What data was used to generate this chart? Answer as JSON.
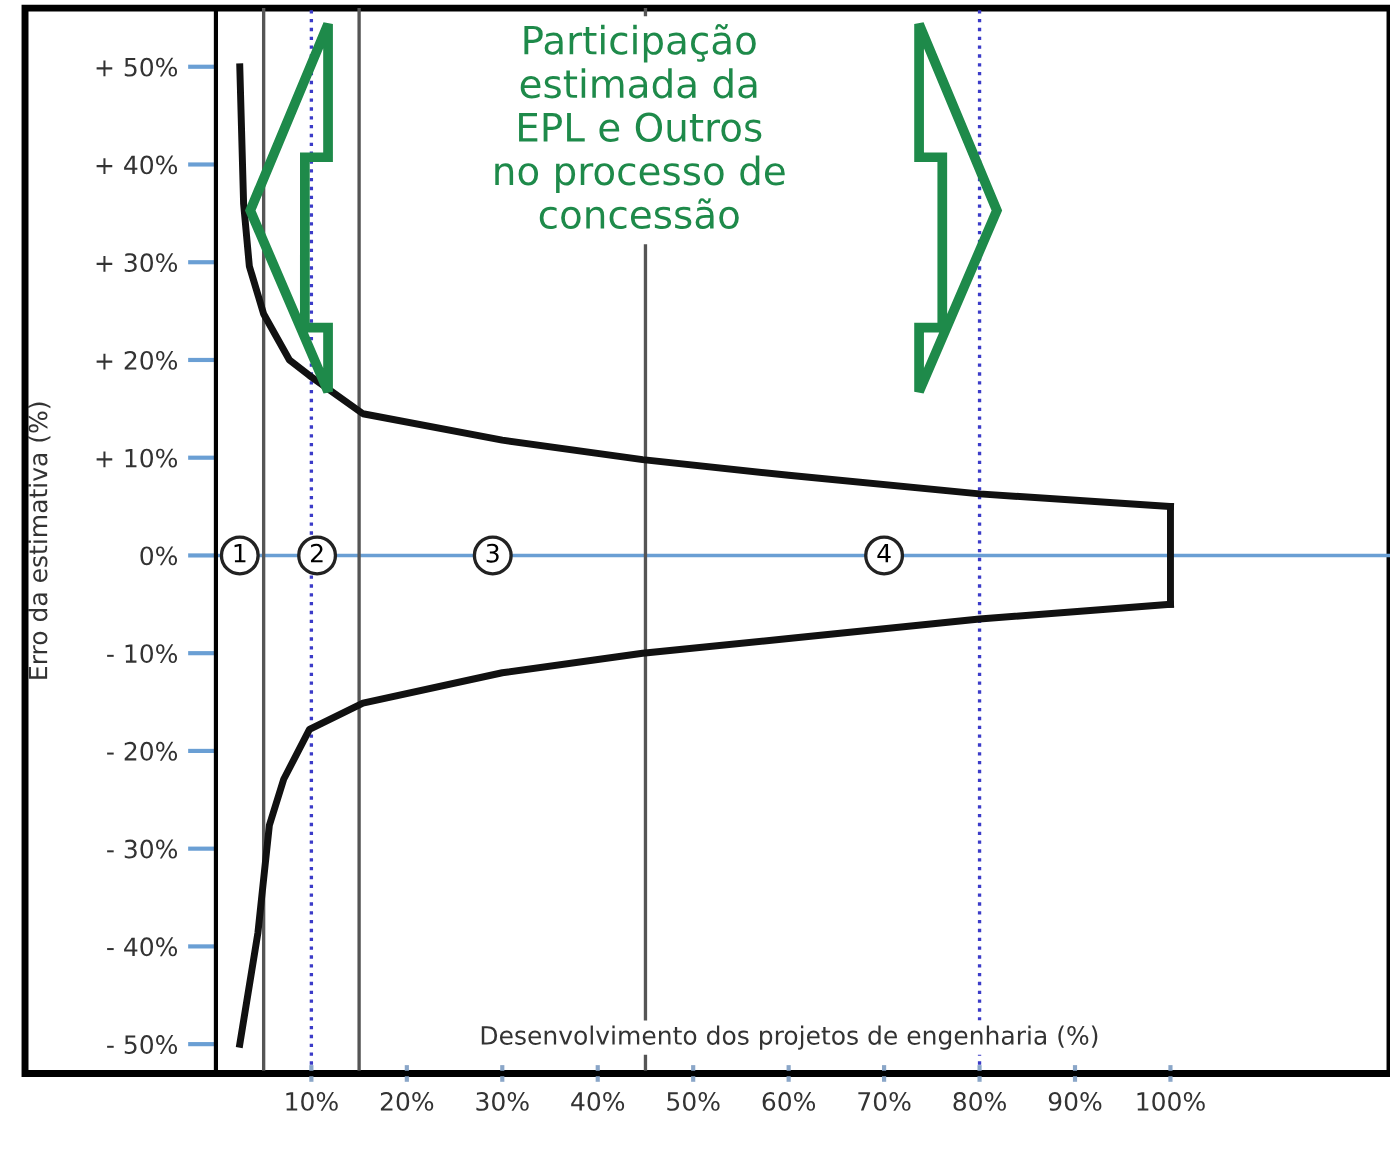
{
  "chart_data": {
    "type": "line",
    "xlabel": "Desenvolvimento dos projetos de engenharia (%)",
    "ylabel": "Erro da estimativa (%)",
    "xlim": [
      -20,
      123
    ],
    "ylim": [
      -53,
      56
    ],
    "xticks": [
      {
        "value": 10,
        "label": "10%"
      },
      {
        "value": 20,
        "label": "20%"
      },
      {
        "value": 30,
        "label": "30%"
      },
      {
        "value": 40,
        "label": "40%"
      },
      {
        "value": 50,
        "label": "50%"
      },
      {
        "value": 60,
        "label": "60%"
      },
      {
        "value": 70,
        "label": "70%"
      },
      {
        "value": 80,
        "label": "80%"
      },
      {
        "value": 90,
        "label": "90%"
      },
      {
        "value": 100,
        "label": "100%"
      }
    ],
    "yticks": [
      {
        "value": 50,
        "label": "+ 50%"
      },
      {
        "value": 40,
        "label": "+ 40%"
      },
      {
        "value": 30,
        "label": "+ 30%"
      },
      {
        "value": 20,
        "label": "+ 20%"
      },
      {
        "value": 10,
        "label": "+ 10%"
      },
      {
        "value": 0,
        "label": "0%"
      },
      {
        "value": -10,
        "label": "- 10%"
      },
      {
        "value": -20,
        "label": "- 20%"
      },
      {
        "value": -30,
        "label": "- 30%"
      },
      {
        "value": -40,
        "label": "- 40%"
      },
      {
        "value": -50,
        "label": "- 50%"
      }
    ],
    "marker": "none",
    "line_style": "solid",
    "series": [
      {
        "color": "#111111",
        "x": [
          2.5,
          2.9,
          3.5,
          5,
          7.7,
          9.8,
          15.4,
          30,
          44.7,
          60,
          80,
          100
        ],
        "values": [
          50,
          36,
          29.6,
          24.7,
          20,
          18.4,
          14.5,
          11.8,
          9.8,
          8.2,
          6.3,
          5
        ]
      },
      {
        "color": "#111111",
        "x": [
          2.5,
          4.4,
          5.6,
          7.1,
          9.8,
          15.4,
          30,
          44.7,
          60,
          80,
          100
        ],
        "values": [
          -50,
          -38.6,
          -27.6,
          -22.9,
          -17.8,
          -15.1,
          -12,
          -10,
          -8.5,
          -6.5,
          -5
        ]
      },
      {
        "color": "#111111",
        "x": [
          100,
          100
        ],
        "values": [
          -5,
          5
        ]
      }
    ],
    "ref_lines": [
      {
        "axis": "y",
        "value": 0,
        "color": "#6a9fd4",
        "line_style": "solid"
      },
      {
        "axis": "x",
        "value": 5,
        "color": "#555555",
        "line_style": "solid"
      },
      {
        "axis": "x",
        "value": 15,
        "color": "#555555",
        "line_style": "solid"
      },
      {
        "axis": "x",
        "value": 45,
        "color": "#555555",
        "line_style": "solid"
      },
      {
        "axis": "x",
        "value": 10,
        "color": "#3b3bc8",
        "line_style": "dotted"
      },
      {
        "axis": "x",
        "value": 80,
        "color": "#3b3bc8",
        "line_style": "dotted"
      }
    ],
    "annotations": [
      {
        "text": "1",
        "x": 2.5,
        "y": 0
      },
      {
        "text": "2",
        "x": 10.6,
        "y": 0
      },
      {
        "text": "3",
        "x": 29,
        "y": 0
      },
      {
        "text": "4",
        "x": 70,
        "y": 0
      },
      "Participação\nestimada da\nEPL e Outros\nno processo de\nconcessão"
    ]
  }
}
